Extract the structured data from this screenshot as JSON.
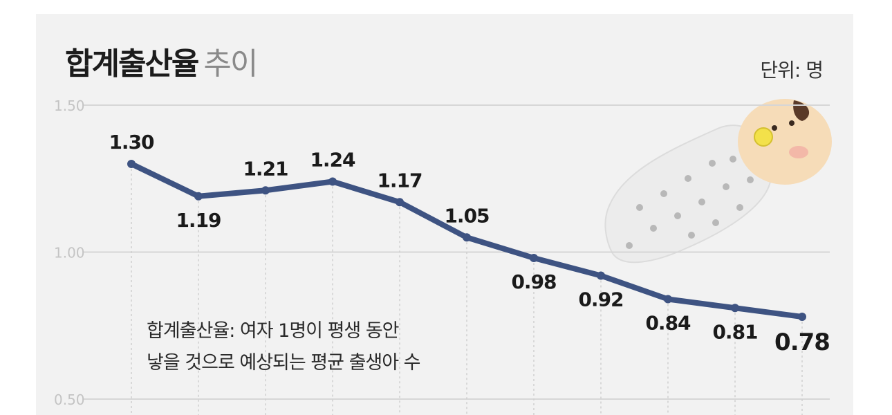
{
  "header": {
    "title_main": "합계출산율",
    "title_sub": "추이",
    "unit": "단위: 명"
  },
  "note": {
    "line1": "합계출산율: 여자 1명이 평생 동안",
    "line2": "낳을 것으로 예상되는 평균 출생아 수"
  },
  "colors": {
    "line": "#3e5382",
    "grid": "#d6d6d6",
    "background": "#f2f2f2"
  },
  "chart_data": {
    "type": "line",
    "title": "합계출산율 추이",
    "unit": "단위: 명",
    "y_ticks": [
      "1.50",
      "1.00",
      "0.50"
    ],
    "ylim": [
      0.5,
      1.5
    ],
    "grid": true,
    "series": [
      {
        "values": [
          1.3,
          1.19,
          1.21,
          1.24,
          1.17,
          1.05,
          0.98,
          0.92,
          0.84,
          0.81,
          0.78
        ],
        "labels": [
          "1.30",
          "1.19",
          "1.21",
          "1.24",
          "1.17",
          "1.05",
          "0.98",
          "0.92",
          "0.84",
          "0.81",
          "0.78"
        ]
      }
    ]
  }
}
